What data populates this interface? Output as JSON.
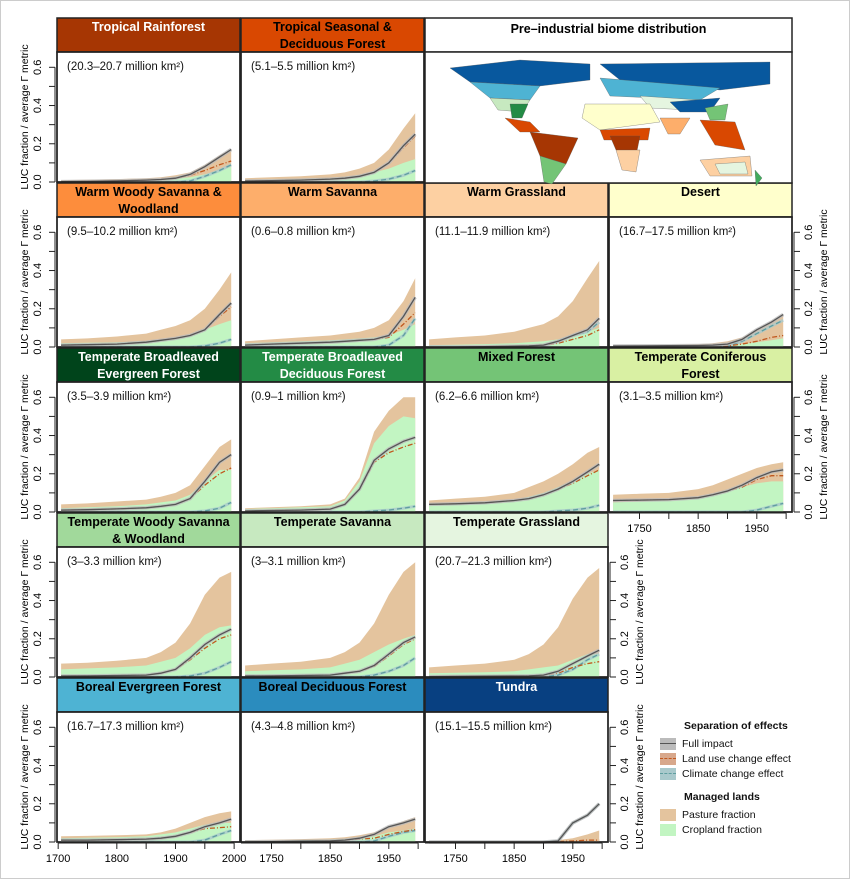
{
  "chart_data": {
    "type": "area",
    "ylabel": "LUC fraction / average Γ metric",
    "ylim": [
      0,
      0.68
    ],
    "yticks": [
      0.0,
      0.2,
      0.4,
      0.6
    ],
    "xlim": [
      1698,
      2010
    ],
    "xticks_first_col": [
      1700,
      1800,
      1900,
      2000
    ],
    "xticks_other_cols": [
      1750,
      1850,
      1950
    ],
    "years": [
      1705,
      1750,
      1800,
      1850,
      1875,
      1900,
      1925,
      1950,
      1975,
      1995
    ],
    "colors": {
      "pasture": "#e4c49e",
      "cropland": "#c2f5c2",
      "full": "#555555",
      "luc": "#c0581e",
      "climate": "#5f9ea0"
    },
    "map_title": "Pre–industrial biome distribution",
    "panels": [
      {
        "title": "Tropical Rainforest",
        "area": "(20.3–20.7 million km²)",
        "color": "#a63603",
        "text": "#fff",
        "total": [
          0.01,
          0.012,
          0.015,
          0.02,
          0.025,
          0.035,
          0.05,
          0.09,
          0.14,
          0.17
        ],
        "crop": [
          0.005,
          0.006,
          0.008,
          0.01,
          0.013,
          0.018,
          0.025,
          0.04,
          0.06,
          0.08
        ],
        "full": [
          0.002,
          0.003,
          0.006,
          0.01,
          0.013,
          0.02,
          0.04,
          0.08,
          0.13,
          0.17
        ],
        "luc": [
          0.002,
          0.003,
          0.006,
          0.01,
          0.013,
          0.02,
          0.035,
          0.06,
          0.09,
          0.11
        ],
        "climate": [
          0,
          0,
          0,
          0,
          0,
          0,
          0.005,
          0.03,
          0.06,
          0.09
        ]
      },
      {
        "title": "Tropical Seasonal & Deciduous Forest",
        "area": "(5.1–5.5 million km²)",
        "color": "#d94801",
        "text": "#000",
        "total": [
          0.02,
          0.025,
          0.03,
          0.04,
          0.05,
          0.07,
          0.1,
          0.17,
          0.28,
          0.36
        ],
        "crop": [
          0.01,
          0.012,
          0.015,
          0.02,
          0.025,
          0.035,
          0.05,
          0.07,
          0.1,
          0.12
        ],
        "full": [
          0.005,
          0.007,
          0.01,
          0.015,
          0.02,
          0.03,
          0.05,
          0.1,
          0.19,
          0.25
        ],
        "luc": [
          0.005,
          0.007,
          0.01,
          0.015,
          0.02,
          0.03,
          0.05,
          0.1,
          0.18,
          0.24
        ],
        "climate": [
          0,
          0,
          0,
          0,
          0,
          0,
          0.005,
          0.015,
          0.035,
          0.06
        ]
      },
      {
        "title": "Warm Woody Savanna & Woodland",
        "area": "(9.5–10.2 million km²)",
        "color": "#fd8d3c",
        "text": "#000",
        "total": [
          0.04,
          0.045,
          0.055,
          0.07,
          0.09,
          0.11,
          0.14,
          0.2,
          0.3,
          0.39
        ],
        "crop": [
          0.02,
          0.022,
          0.025,
          0.03,
          0.035,
          0.045,
          0.06,
          0.09,
          0.12,
          0.14
        ],
        "full": [
          0.01,
          0.012,
          0.015,
          0.025,
          0.035,
          0.045,
          0.06,
          0.09,
          0.17,
          0.23
        ],
        "luc": [
          0.01,
          0.012,
          0.015,
          0.025,
          0.035,
          0.045,
          0.06,
          0.09,
          0.16,
          0.21
        ],
        "climate": [
          0,
          0,
          0,
          0,
          0,
          0,
          0,
          0.005,
          0.02,
          0.04
        ]
      },
      {
        "title": "Warm Savanna",
        "area": "(0.6–0.8 million km²)",
        "color": "#fdae6b",
        "text": "#000",
        "total": [
          0.03,
          0.04,
          0.05,
          0.06,
          0.07,
          0.08,
          0.1,
          0.14,
          0.24,
          0.36
        ],
        "crop": [
          0.02,
          0.025,
          0.03,
          0.035,
          0.04,
          0.045,
          0.05,
          0.06,
          0.09,
          0.12
        ],
        "full": [
          0.01,
          0.015,
          0.02,
          0.025,
          0.03,
          0.035,
          0.04,
          0.06,
          0.16,
          0.26
        ],
        "luc": [
          0.01,
          0.015,
          0.02,
          0.025,
          0.03,
          0.035,
          0.04,
          0.05,
          0.12,
          0.18
        ],
        "climate": [
          0,
          0,
          0,
          0,
          0,
          0,
          0,
          0.01,
          0.06,
          0.15
        ]
      },
      {
        "title": "Warm Grassland",
        "area": "(11.1–11.9 million km²)",
        "color": "#fdd0a2",
        "text": "#000",
        "total": [
          0.04,
          0.05,
          0.06,
          0.08,
          0.1,
          0.12,
          0.16,
          0.24,
          0.36,
          0.45
        ],
        "crop": [
          0.01,
          0.012,
          0.015,
          0.02,
          0.025,
          0.03,
          0.04,
          0.06,
          0.08,
          0.1
        ],
        "full": [
          0,
          0,
          0.002,
          0.004,
          0.006,
          0.01,
          0.03,
          0.06,
          0.09,
          0.15
        ],
        "luc": [
          0,
          0,
          0.002,
          0.004,
          0.006,
          0.01,
          0.02,
          0.04,
          0.06,
          0.09
        ],
        "climate": [
          0,
          0,
          0,
          0,
          0,
          0.005,
          0.03,
          0.06,
          0.08,
          0.13
        ]
      },
      {
        "title": "Desert",
        "area": "(16.7–17.5 million km²)",
        "color": "#ffffcc",
        "text": "#000",
        "total": [
          0.005,
          0.007,
          0.01,
          0.015,
          0.02,
          0.03,
          0.05,
          0.09,
          0.13,
          0.17
        ],
        "crop": [
          0.002,
          0.003,
          0.004,
          0.005,
          0.007,
          0.01,
          0.015,
          0.025,
          0.035,
          0.045
        ],
        "full": [
          0.005,
          0.006,
          0.007,
          0.008,
          0.01,
          0.015,
          0.04,
          0.09,
          0.13,
          0.17
        ],
        "luc": [
          0,
          0,
          0,
          0,
          0,
          0.005,
          0.015,
          0.03,
          0.05,
          0.06
        ],
        "climate": [
          0,
          0,
          0,
          0,
          0,
          0.005,
          0.03,
          0.07,
          0.11,
          0.14
        ]
      },
      {
        "title": "Temperate Broadleaved Evergreen Forest",
        "area": "(3.5–3.9 million km²)",
        "color": "#00441b",
        "text": "#fff",
        "total": [
          0.04,
          0.045,
          0.055,
          0.065,
          0.08,
          0.1,
          0.14,
          0.24,
          0.34,
          0.38
        ],
        "crop": [
          0.02,
          0.025,
          0.03,
          0.04,
          0.05,
          0.06,
          0.09,
          0.16,
          0.22,
          0.22
        ],
        "full": [
          0.01,
          0.012,
          0.016,
          0.022,
          0.03,
          0.04,
          0.07,
          0.16,
          0.26,
          0.3
        ],
        "luc": [
          0.01,
          0.012,
          0.016,
          0.022,
          0.03,
          0.04,
          0.07,
          0.14,
          0.2,
          0.23
        ],
        "climate": [
          0,
          0,
          0,
          0,
          0,
          0,
          0,
          0.005,
          0.02,
          0.05
        ]
      },
      {
        "title": "Temperate Broadleaved Deciduous Forest",
        "area": "(0.9–1 million km²)",
        "color": "#238b45",
        "text": "#fff",
        "total": [
          0.02,
          0.025,
          0.03,
          0.04,
          0.07,
          0.18,
          0.42,
          0.53,
          0.6,
          0.6
        ],
        "crop": [
          0.015,
          0.02,
          0.025,
          0.03,
          0.06,
          0.16,
          0.36,
          0.45,
          0.5,
          0.49
        ],
        "full": [
          0.005,
          0.008,
          0.01,
          0.015,
          0.04,
          0.12,
          0.27,
          0.33,
          0.37,
          0.39
        ],
        "luc": [
          0.005,
          0.008,
          0.01,
          0.015,
          0.04,
          0.12,
          0.26,
          0.31,
          0.34,
          0.36
        ],
        "climate": [
          0,
          0,
          0,
          0,
          0,
          0,
          0.005,
          0.01,
          0.02,
          0.03
        ]
      },
      {
        "title": "Mixed Forest",
        "area": "(6.2–6.6 million km²)",
        "color": "#74c476",
        "text": "#000",
        "total": [
          0.06,
          0.07,
          0.08,
          0.1,
          0.13,
          0.16,
          0.2,
          0.25,
          0.31,
          0.34
        ],
        "crop": [
          0.04,
          0.045,
          0.05,
          0.06,
          0.08,
          0.1,
          0.13,
          0.16,
          0.2,
          0.22
        ],
        "full": [
          0.04,
          0.043,
          0.048,
          0.06,
          0.07,
          0.09,
          0.12,
          0.16,
          0.21,
          0.25
        ],
        "luc": [
          0.04,
          0.043,
          0.048,
          0.06,
          0.07,
          0.09,
          0.12,
          0.15,
          0.19,
          0.22
        ],
        "climate": [
          0,
          0,
          0,
          0,
          0,
          0,
          0.005,
          0.01,
          0.02,
          0.035
        ]
      },
      {
        "title": "Temperate Coniferous Forest",
        "area": "(3.1–3.5 million km²)",
        "color": "#d9f0a3",
        "text": "#000",
        "total": [
          0.09,
          0.095,
          0.1,
          0.12,
          0.14,
          0.17,
          0.2,
          0.23,
          0.25,
          0.26
        ],
        "crop": [
          0.05,
          0.055,
          0.06,
          0.07,
          0.09,
          0.11,
          0.13,
          0.15,
          0.16,
          0.16
        ],
        "full": [
          0.06,
          0.062,
          0.065,
          0.075,
          0.09,
          0.11,
          0.14,
          0.18,
          0.21,
          0.22
        ],
        "luc": [
          0.06,
          0.062,
          0.065,
          0.075,
          0.09,
          0.11,
          0.13,
          0.17,
          0.19,
          0.19
        ],
        "climate": [
          0,
          0,
          0,
          0,
          0,
          0,
          0,
          0.01,
          0.03,
          0.045
        ]
      },
      {
        "title": "Temperate Woody Savanna & Woodland",
        "area": "(3–3.3 million km²)",
        "color": "#a1d99b",
        "text": "#000",
        "total": [
          0.07,
          0.075,
          0.085,
          0.1,
          0.13,
          0.18,
          0.28,
          0.43,
          0.52,
          0.55
        ],
        "crop": [
          0.04,
          0.045,
          0.05,
          0.06,
          0.08,
          0.1,
          0.15,
          0.22,
          0.26,
          0.27
        ],
        "full": [
          0.005,
          0.006,
          0.008,
          0.01,
          0.02,
          0.04,
          0.1,
          0.17,
          0.22,
          0.25
        ],
        "luc": [
          0.005,
          0.006,
          0.008,
          0.01,
          0.02,
          0.04,
          0.09,
          0.15,
          0.2,
          0.22
        ],
        "climate": [
          0,
          0,
          0,
          0,
          0,
          0,
          0.005,
          0.02,
          0.05,
          0.08
        ]
      },
      {
        "title": "Temperate Savanna",
        "area": "(3–3.1 million km²)",
        "color": "#c7e9c0",
        "text": "#000",
        "total": [
          0.06,
          0.07,
          0.08,
          0.1,
          0.13,
          0.18,
          0.28,
          0.43,
          0.55,
          0.6
        ],
        "crop": [
          0.03,
          0.035,
          0.04,
          0.05,
          0.07,
          0.09,
          0.13,
          0.17,
          0.2,
          0.22
        ],
        "full": [
          0.005,
          0.006,
          0.008,
          0.01,
          0.02,
          0.03,
          0.06,
          0.12,
          0.18,
          0.21
        ],
        "luc": [
          0.005,
          0.006,
          0.008,
          0.01,
          0.02,
          0.03,
          0.055,
          0.11,
          0.17,
          0.2
        ],
        "climate": [
          0,
          0,
          0,
          0,
          0,
          0,
          0.01,
          0.03,
          0.06,
          0.1
        ]
      },
      {
        "title": "Temperate Grassland",
        "area": "(20.7–21.3 million km²)",
        "color": "#e5f5e0",
        "text": "#000",
        "total": [
          0.05,
          0.06,
          0.07,
          0.09,
          0.12,
          0.17,
          0.26,
          0.41,
          0.52,
          0.57
        ],
        "crop": [
          0.02,
          0.022,
          0.025,
          0.03,
          0.04,
          0.05,
          0.06,
          0.09,
          0.12,
          0.12
        ],
        "full": [
          0.002,
          0.003,
          0.004,
          0.005,
          0.006,
          0.01,
          0.03,
          0.07,
          0.11,
          0.14
        ],
        "luc": [
          0.002,
          0.003,
          0.004,
          0.005,
          0.006,
          0.01,
          0.02,
          0.05,
          0.07,
          0.08
        ],
        "climate": [
          0,
          0,
          0,
          0,
          0,
          0,
          0.01,
          0.04,
          0.09,
          0.12
        ]
      },
      {
        "title": "Boreal Evergreen Forest",
        "area": "(16.7–17.3 million km²)",
        "color": "#4eb3d3",
        "text": "#000",
        "total": [
          0.03,
          0.032,
          0.035,
          0.04,
          0.05,
          0.07,
          0.1,
          0.13,
          0.15,
          0.16
        ],
        "crop": [
          0.02,
          0.022,
          0.025,
          0.03,
          0.04,
          0.05,
          0.07,
          0.09,
          0.1,
          0.1
        ],
        "full": [
          0.01,
          0.01,
          0.012,
          0.015,
          0.02,
          0.03,
          0.05,
          0.08,
          0.1,
          0.12
        ],
        "luc": [
          0.01,
          0.01,
          0.012,
          0.015,
          0.02,
          0.03,
          0.05,
          0.07,
          0.075,
          0.08
        ],
        "climate": [
          0,
          0,
          0,
          0,
          0,
          0,
          0,
          0.01,
          0.04,
          0.06
        ]
      },
      {
        "title": "Boreal Deciduous Forest",
        "area": "(4.3–4.8 million km²)",
        "color": "#2b8cbe",
        "text": "#000",
        "total": [
          0.01,
          0.012,
          0.015,
          0.02,
          0.025,
          0.035,
          0.05,
          0.08,
          0.11,
          0.13
        ],
        "crop": [
          0.005,
          0.007,
          0.01,
          0.012,
          0.015,
          0.02,
          0.03,
          0.05,
          0.06,
          0.07
        ],
        "full": [
          0.001,
          0.002,
          0.004,
          0.006,
          0.01,
          0.02,
          0.04,
          0.08,
          0.1,
          0.12
        ],
        "luc": [
          0.001,
          0.002,
          0.004,
          0.006,
          0.01,
          0.015,
          0.02,
          0.04,
          0.055,
          0.065
        ],
        "climate": [
          0,
          0,
          0,
          0,
          0,
          0,
          0.005,
          0.03,
          0.05,
          0.06
        ]
      },
      {
        "title": "Tundra",
        "area": "(15.1–15.5 million km²)",
        "color": "#084081",
        "text": "#fff",
        "total": [
          0,
          0.001,
          0.002,
          0.003,
          0.004,
          0.006,
          0.01,
          0.02,
          0.04,
          0.06
        ],
        "crop": [
          0,
          0,
          0,
          0,
          0,
          0,
          0,
          0,
          0,
          0
        ],
        "full": [
          0,
          0,
          0,
          0,
          0,
          0,
          0.005,
          0.1,
          0.14,
          0.2
        ],
        "luc": [
          0,
          0,
          0,
          0,
          0,
          0,
          0.002,
          0.005,
          0.01,
          0.01
        ],
        "climate": [
          0,
          0,
          0,
          0,
          0,
          0,
          0.005,
          0.1,
          0.14,
          0.2
        ]
      }
    ],
    "legend": {
      "effects_title": "Separation of effects",
      "full": "Full impact",
      "luc": "Land use change effect",
      "climate": "Climate change effect",
      "managed_title": "Managed lands",
      "pasture": "Pasture fraction",
      "cropland": "Cropland fraction"
    }
  }
}
